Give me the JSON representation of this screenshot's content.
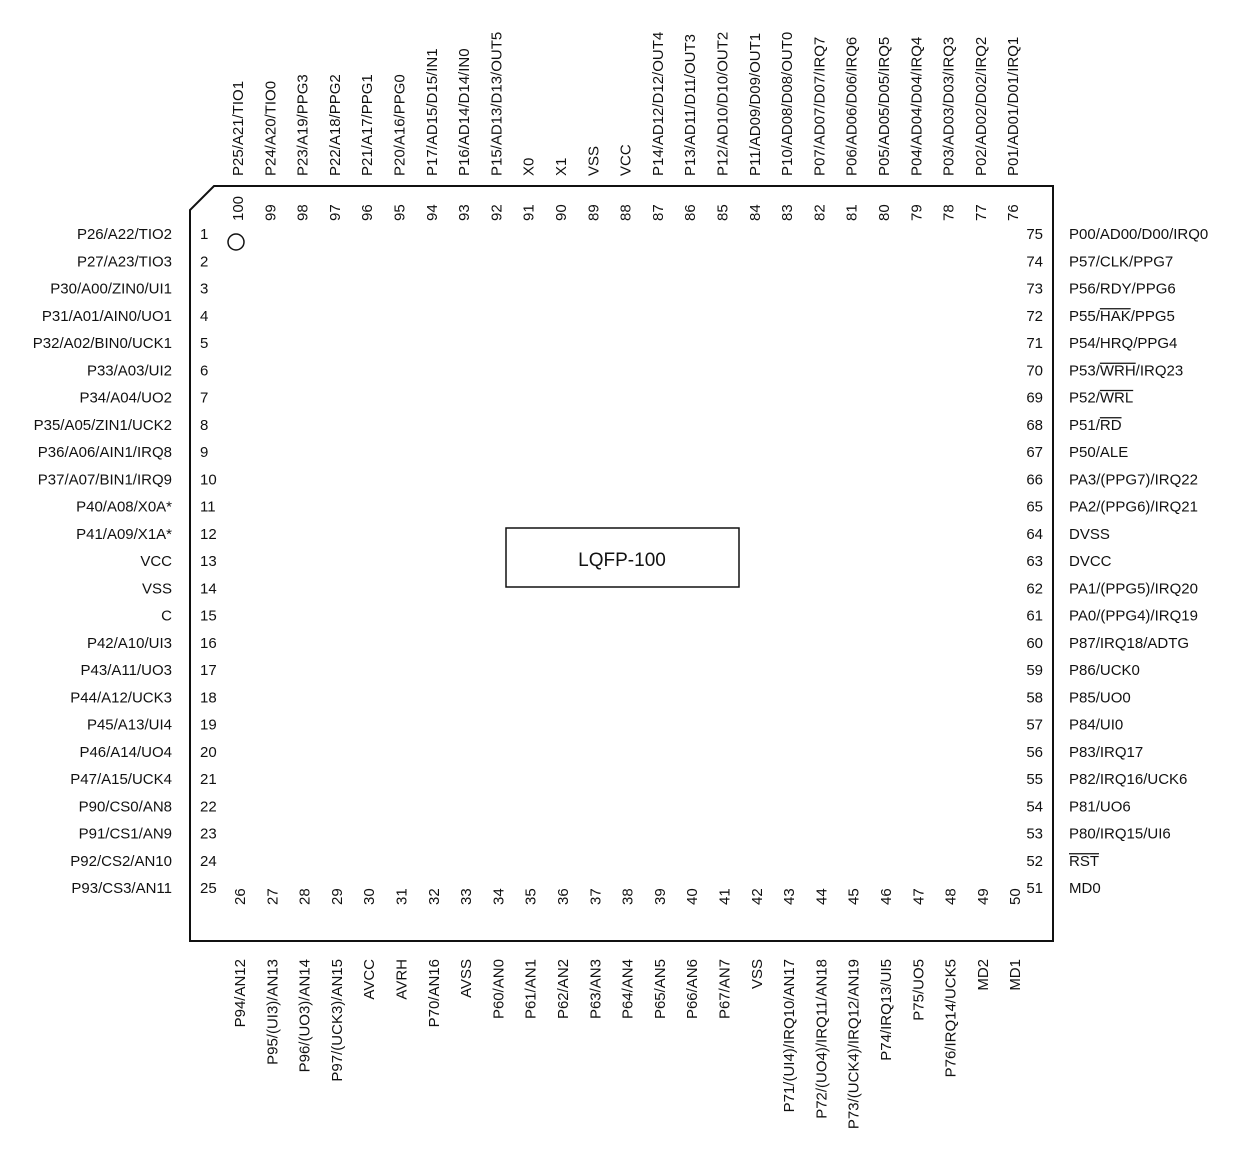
{
  "package": {
    "name": "LQFP-100"
  },
  "left_pins": [
    {
      "num": "1",
      "label": "P26/A22/TIO2"
    },
    {
      "num": "2",
      "label": "P27/A23/TIO3"
    },
    {
      "num": "3",
      "label": "P30/A00/ZIN0/UI1"
    },
    {
      "num": "4",
      "label": "P31/A01/AIN0/UO1"
    },
    {
      "num": "5",
      "label": "P32/A02/BIN0/UCK1"
    },
    {
      "num": "6",
      "label": "P33/A03/UI2"
    },
    {
      "num": "7",
      "label": "P34/A04/UO2"
    },
    {
      "num": "8",
      "label": "P35/A05/ZIN1/UCK2"
    },
    {
      "num": "9",
      "label": "P36/A06/AIN1/IRQ8"
    },
    {
      "num": "10",
      "label": "P37/A07/BIN1/IRQ9"
    },
    {
      "num": "11",
      "label": "P40/A08/X0A*"
    },
    {
      "num": "12",
      "label": "P41/A09/X1A*"
    },
    {
      "num": "13",
      "label": "VCC"
    },
    {
      "num": "14",
      "label": "VSS"
    },
    {
      "num": "15",
      "label": "C"
    },
    {
      "num": "16",
      "label": "P42/A10/UI3"
    },
    {
      "num": "17",
      "label": "P43/A11/UO3"
    },
    {
      "num": "18",
      "label": "P44/A12/UCK3"
    },
    {
      "num": "19",
      "label": "P45/A13/UI4"
    },
    {
      "num": "20",
      "label": "P46/A14/UO4"
    },
    {
      "num": "21",
      "label": "P47/A15/UCK4"
    },
    {
      "num": "22",
      "label": "P90/CS0/AN8"
    },
    {
      "num": "23",
      "label": "P91/CS1/AN9"
    },
    {
      "num": "24",
      "label": "P92/CS2/AN10"
    },
    {
      "num": "25",
      "label": "P93/CS3/AN11"
    }
  ],
  "right_pins": [
    {
      "num": "75",
      "label": "P00/AD00/D00/IRQ0"
    },
    {
      "num": "74",
      "label": "P57/CLK/PPG7"
    },
    {
      "num": "73",
      "label": "P56/RDY/PPG6"
    },
    {
      "num": "72",
      "label": "P55/HAK/PPG5"
    },
    {
      "num": "71",
      "label": "P54/HRQ/PPG4"
    },
    {
      "num": "70",
      "label": "P53/WRH/IRQ23"
    },
    {
      "num": "69",
      "label": "P52/WRL"
    },
    {
      "num": "68",
      "label": "P51/RD"
    },
    {
      "num": "67",
      "label": "P50/ALE"
    },
    {
      "num": "66",
      "label": "PA3/(PPG7)/IRQ22"
    },
    {
      "num": "65",
      "label": "PA2/(PPG6)/IRQ21"
    },
    {
      "num": "64",
      "label": "DVSS"
    },
    {
      "num": "63",
      "label": "DVCC"
    },
    {
      "num": "62",
      "label": "PA1/(PPG5)/IRQ20"
    },
    {
      "num": "61",
      "label": "PA0/(PPG4)/IRQ19"
    },
    {
      "num": "60",
      "label": "P87/IRQ18/ADTG"
    },
    {
      "num": "59",
      "label": "P86/UCK0"
    },
    {
      "num": "58",
      "label": "P85/UO0"
    },
    {
      "num": "57",
      "label": "P84/UI0"
    },
    {
      "num": "56",
      "label": "P83/IRQ17"
    },
    {
      "num": "55",
      "label": "P82/IRQ16/UCK6"
    },
    {
      "num": "54",
      "label": "P81/UO6"
    },
    {
      "num": "53",
      "label": "P80/IRQ15/UI6"
    },
    {
      "num": "52",
      "label": "RST"
    },
    {
      "num": "51",
      "label": "MD0"
    }
  ],
  "top_pins": [
    {
      "num": "100",
      "label": "P25/A21/TIO1"
    },
    {
      "num": "99",
      "label": "P24/A20/TIO0"
    },
    {
      "num": "98",
      "label": "P23/A19/PPG3"
    },
    {
      "num": "97",
      "label": "P22/A18/PPG2"
    },
    {
      "num": "96",
      "label": "P21/A17/PPG1"
    },
    {
      "num": "95",
      "label": "P20/A16/PPG0"
    },
    {
      "num": "94",
      "label": "P17/AD15/D15/IN1"
    },
    {
      "num": "93",
      "label": "P16/AD14/D14/IN0"
    },
    {
      "num": "92",
      "label": "P15/AD13/D13/OUT5"
    },
    {
      "num": "91",
      "label": "X0"
    },
    {
      "num": "90",
      "label": "X1"
    },
    {
      "num": "89",
      "label": "VSS"
    },
    {
      "num": "88",
      "label": "VCC"
    },
    {
      "num": "87",
      "label": "P14/AD12/D12/OUT4"
    },
    {
      "num": "86",
      "label": "P13/AD11/D11/OUT3"
    },
    {
      "num": "85",
      "label": "P12/AD10/D10/OUT2"
    },
    {
      "num": "84",
      "label": "P11/AD09/D09/OUT1"
    },
    {
      "num": "83",
      "label": "P10/AD08/D08/OUT0"
    },
    {
      "num": "82",
      "label": "P07/AD07/D07/IRQ7"
    },
    {
      "num": "81",
      "label": "P06/AD06/D06/IRQ6"
    },
    {
      "num": "80",
      "label": "P05/AD05/D05/IRQ5"
    },
    {
      "num": "79",
      "label": "P04/AD04/D04/IRQ4"
    },
    {
      "num": "78",
      "label": "P03/AD03/D03/IRQ3"
    },
    {
      "num": "77",
      "label": "P02/AD02/D02/IRQ2"
    },
    {
      "num": "76",
      "label": "P01/AD01/D01/IRQ1"
    }
  ],
  "bottom_pins": [
    {
      "num": "26",
      "label": "P94/AN12"
    },
    {
      "num": "27",
      "label": "P95/(UI3)/AN13"
    },
    {
      "num": "28",
      "label": "P96/(UO3)/AN14"
    },
    {
      "num": "29",
      "label": "P97/(UCK3)/AN15"
    },
    {
      "num": "30",
      "label": "AVCC"
    },
    {
      "num": "31",
      "label": "AVRH"
    },
    {
      "num": "32",
      "label": "P70/AN16"
    },
    {
      "num": "33",
      "label": "AVSS"
    },
    {
      "num": "34",
      "label": "P60/AN0"
    },
    {
      "num": "35",
      "label": "P61/AN1"
    },
    {
      "num": "36",
      "label": "P62/AN2"
    },
    {
      "num": "37",
      "label": "P63/AN3"
    },
    {
      "num": "38",
      "label": "P64/AN4"
    },
    {
      "num": "39",
      "label": "P65/AN5"
    },
    {
      "num": "40",
      "label": "P66/AN6"
    },
    {
      "num": "41",
      "label": "P67/AN7"
    },
    {
      "num": "42",
      "label": "VSS"
    },
    {
      "num": "43",
      "label": "P71/(UI4)/IRQ10/AN17"
    },
    {
      "num": "44",
      "label": "P72/(UO4)/IRQ11/AN18"
    },
    {
      "num": "45",
      "label": "P73/(UCK4)/IRQ12/AN19"
    },
    {
      "num": "46",
      "label": "P74/IRQ13/UI5"
    },
    {
      "num": "47",
      "label": "P75/UO5"
    },
    {
      "num": "48",
      "label": "P76/IRQ14/UCK5"
    },
    {
      "num": "49",
      "label": "MD2"
    },
    {
      "num": "50",
      "label": "MD1"
    }
  ],
  "overlines": {
    "72": "HAK",
    "70": "WRH",
    "69": "WRL",
    "68": "RD",
    "52": "RST"
  }
}
